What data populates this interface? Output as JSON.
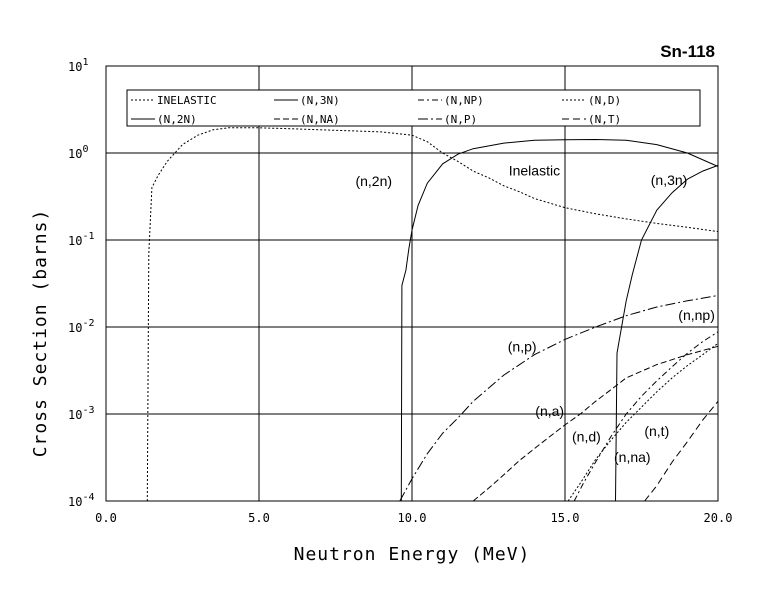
{
  "chart_data": {
    "type": "line",
    "title": "Sn-118",
    "xlabel": "Neutron Energy (MeV)",
    "ylabel": "Cross Section (barns)",
    "xlim": [
      0,
      20
    ],
    "ylim": [
      0.0001,
      10
    ],
    "yscale": "log",
    "grid": true,
    "legend_position": "top",
    "x_ticks": [
      "0.0",
      "5.0",
      "10.0",
      "15.0",
      "20.0"
    ],
    "x_tick_values": [
      0,
      5,
      10,
      15,
      20
    ],
    "y_ticks": [
      {
        "base": "10",
        "exp": "-4",
        "value": 0.0001
      },
      {
        "base": "10",
        "exp": "-3",
        "value": 0.001
      },
      {
        "base": "10",
        "exp": "-2",
        "value": 0.01
      },
      {
        "base": "10",
        "exp": "-1",
        "value": 0.1
      },
      {
        "base": "10",
        "exp": "0",
        "value": 1
      },
      {
        "base": "10",
        "exp": "1",
        "value": 10
      }
    ],
    "legend": [
      {
        "label": "INELASTIC",
        "dash": "2,2"
      },
      {
        "label": "(N,3N)",
        "dash": ""
      },
      {
        "label": "(N,NP)",
        "dash": "6,3,2,3"
      },
      {
        "label": "(N,D)",
        "dash": "2,2"
      },
      {
        "label": "(N,2N)",
        "dash": ""
      },
      {
        "label": "(N,NA)",
        "dash": "6,3"
      },
      {
        "label": "(N,P)",
        "dash": "10,3,2,3"
      },
      {
        "label": "(N,T)",
        "dash": "7,4"
      }
    ],
    "series": [
      {
        "name": "INELASTIC",
        "dash": "2,2",
        "x": [
          1.35,
          1.4,
          1.5,
          1.7,
          2.0,
          2.5,
          3.0,
          3.5,
          4.0,
          4.5,
          5.0,
          6.0,
          7.0,
          8.0,
          9.0,
          10.0,
          10.5,
          11.0,
          11.5,
          12.0,
          12.5,
          13.0,
          13.5,
          14.0,
          15.0,
          16.0,
          17.0,
          18.0,
          19.0,
          20.0
        ],
        "y": [
          0.0001,
          0.07,
          0.4,
          0.55,
          0.8,
          1.25,
          1.6,
          1.85,
          1.95,
          1.95,
          1.95,
          1.9,
          1.85,
          1.8,
          1.75,
          1.6,
          1.35,
          1.0,
          0.8,
          0.62,
          0.52,
          0.42,
          0.36,
          0.3,
          0.235,
          0.2,
          0.175,
          0.155,
          0.14,
          0.125
        ]
      },
      {
        "name": "(N,2N)",
        "dash": "",
        "x": [
          9.65,
          9.67,
          9.8,
          9.9,
          10.0,
          10.2,
          10.5,
          11.0,
          11.5,
          12.0,
          13.0,
          14.0,
          15.0,
          16.0,
          17.0,
          18.0,
          19.0,
          20.0
        ],
        "y": [
          0.0001,
          0.03,
          0.045,
          0.08,
          0.13,
          0.25,
          0.45,
          0.75,
          0.97,
          1.12,
          1.3,
          1.4,
          1.42,
          1.43,
          1.4,
          1.25,
          1.0,
          0.7
        ]
      },
      {
        "name": "(N,3N)",
        "dash": "",
        "x": [
          16.65,
          16.7,
          16.8,
          17.0,
          17.2,
          17.5,
          18.0,
          18.5,
          19.0,
          19.5,
          20.0
        ],
        "y": [
          0.0001,
          0.005,
          0.008,
          0.02,
          0.04,
          0.1,
          0.22,
          0.35,
          0.5,
          0.62,
          0.72
        ]
      },
      {
        "name": "(N,P)",
        "dash": "10,3,2,3",
        "x": [
          9.6,
          10.0,
          10.5,
          11.0,
          11.5,
          12.0,
          13.0,
          14.0,
          15.0,
          16.0,
          17.0,
          18.0,
          19.0,
          20.0
        ],
        "y": [
          0.0001,
          0.00018,
          0.00035,
          0.0006,
          0.0009,
          0.0014,
          0.0028,
          0.0048,
          0.0072,
          0.01,
          0.0135,
          0.017,
          0.02,
          0.023
        ]
      },
      {
        "name": "(N,NA)",
        "dash": "6,3",
        "x": [
          12.0,
          12.5,
          13.0,
          13.5,
          14.0,
          14.5,
          15.0,
          15.5,
          16.0,
          16.5,
          17.0,
          18.0,
          19.0,
          20.0
        ],
        "y": [
          0.0001,
          0.00014,
          0.0002,
          0.00029,
          0.0004,
          0.00055,
          0.00075,
          0.001,
          0.0014,
          0.0019,
          0.0026,
          0.0037,
          0.0048,
          0.006
        ]
      },
      {
        "name": "(N,NP)",
        "dash": "6,3,2,3",
        "x": [
          15.3,
          15.6,
          16.0,
          16.5,
          17.0,
          17.5,
          18.0,
          18.5,
          19.0,
          19.5,
          20.0
        ],
        "y": [
          0.0001,
          0.00016,
          0.00028,
          0.00055,
          0.001,
          0.0016,
          0.0024,
          0.0035,
          0.005,
          0.0068,
          0.0088
        ]
      },
      {
        "name": "(N,D)",
        "dash": "2,2",
        "x": [
          15.1,
          15.5,
          16.0,
          16.5,
          17.0,
          17.5,
          18.0,
          18.5,
          19.0,
          19.5,
          20.0
        ],
        "y": [
          0.0001,
          0.00016,
          0.0003,
          0.0005,
          0.0008,
          0.0012,
          0.0018,
          0.0026,
          0.0036,
          0.0048,
          0.0065
        ]
      },
      {
        "name": "(N,T)",
        "dash": "7,4",
        "x": [
          17.6,
          18.0,
          18.5,
          19.0,
          19.5,
          20.0
        ],
        "y": [
          0.0001,
          0.00015,
          0.00028,
          0.00048,
          0.00085,
          0.0014
        ]
      }
    ],
    "annotations": [
      {
        "text": "(n,2n)",
        "x": 8.75,
        "y": 0.42
      },
      {
        "text": "Inelastic",
        "x": 14.0,
        "y": 0.55
      },
      {
        "text": "(n,3n)",
        "x": 18.4,
        "y": 0.43
      },
      {
        "text": "(n,np)",
        "x": 19.3,
        "y": 0.012
      },
      {
        "text": "(n,p)",
        "x": 13.6,
        "y": 0.0052
      },
      {
        "text": "(n,a)",
        "x": 14.5,
        "y": 0.00095
      },
      {
        "text": "(n,d)",
        "x": 15.7,
        "y": 0.00048
      },
      {
        "text": "(n,t)",
        "x": 18.0,
        "y": 0.00056
      },
      {
        "text": "(n,na)",
        "x": 17.2,
        "y": 0.00028
      }
    ]
  }
}
